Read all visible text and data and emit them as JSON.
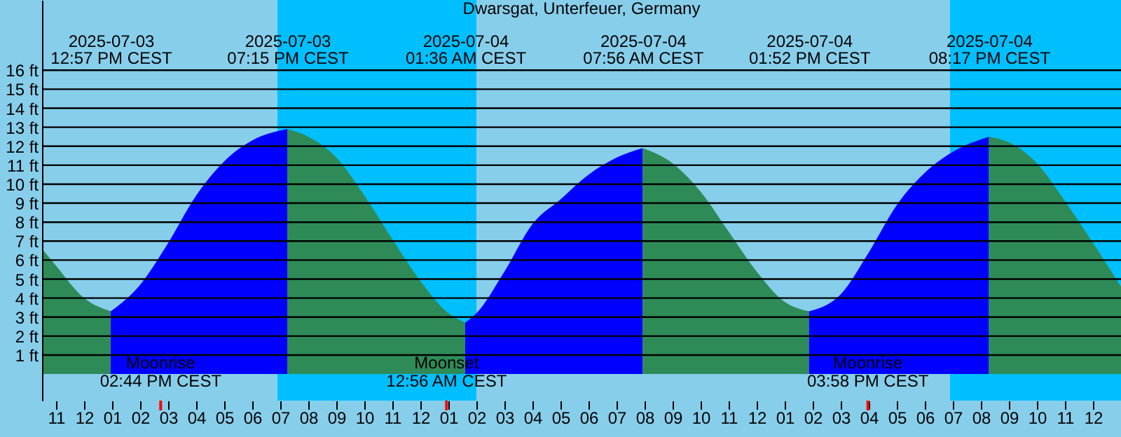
{
  "chart_data": {
    "type": "area",
    "title": "Dwarsgat, Unterfeuer, Germany",
    "series": [
      {
        "color": "#2e8b57",
        "x": [
          "2025-07-03T10:30",
          "2025-07-03T11:00",
          "2025-07-03T12:00",
          "2025-07-03T12:57"
        ],
        "values": [
          6.6,
          5.7,
          4.0,
          3.3
        ]
      },
      {
        "color": "#0000ff",
        "x": [
          "2025-07-03T12:57",
          "2025-07-03T14:00",
          "2025-07-03T15:00",
          "2025-07-03T16:00",
          "2025-07-03T17:00",
          "2025-07-03T18:00",
          "2025-07-03T19:15"
        ],
        "values": [
          3.3,
          4.7,
          6.9,
          9.4,
          11.2,
          12.3,
          12.9
        ]
      },
      {
        "color": "#2e8b57",
        "x": [
          "2025-07-03T19:15",
          "2025-07-03T20:00",
          "2025-07-03T21:00",
          "2025-07-03T22:00",
          "2025-07-03T23:00",
          "2025-07-04T00:00",
          "2025-07-04T01:00",
          "2025-07-04T01:36"
        ],
        "values": [
          12.9,
          12.5,
          11.4,
          9.4,
          7.1,
          4.9,
          3.2,
          2.7
        ]
      },
      {
        "color": "#0000ff",
        "x": [
          "2025-07-04T01:36",
          "2025-07-04T02:00",
          "2025-07-04T03:00",
          "2025-07-04T04:00",
          "2025-07-04T05:00",
          "2025-07-04T06:00",
          "2025-07-04T07:00",
          "2025-07-04T07:56"
        ],
        "values": [
          2.7,
          3.2,
          5.4,
          7.9,
          9.2,
          10.5,
          11.4,
          11.9
        ]
      },
      {
        "color": "#2e8b57",
        "x": [
          "2025-07-04T07:56",
          "2025-07-04T09:00",
          "2025-07-04T10:00",
          "2025-07-04T11:00",
          "2025-07-04T12:00",
          "2025-07-04T13:00",
          "2025-07-04T13:52"
        ],
        "values": [
          11.9,
          11.1,
          9.6,
          7.5,
          5.4,
          3.8,
          3.3
        ]
      },
      {
        "color": "#0000ff",
        "x": [
          "2025-07-04T13:52",
          "2025-07-04T15:00",
          "2025-07-04T16:00",
          "2025-07-04T17:00",
          "2025-07-04T18:00",
          "2025-07-04T19:00",
          "2025-07-04T20:17"
        ],
        "values": [
          3.3,
          4.2,
          6.4,
          8.9,
          10.6,
          11.7,
          12.5
        ]
      },
      {
        "color": "#2e8b57",
        "x": [
          "2025-07-04T20:17",
          "2025-07-04T21:00",
          "2025-07-04T22:00",
          "2025-07-04T23:00",
          "2025-07-05T00:00",
          "2025-07-05T01:00"
        ],
        "values": [
          12.5,
          12.2,
          11.1,
          9.1,
          6.9,
          4.6
        ]
      }
    ],
    "x2lim": [
      "2025-07-03T10:30",
      "2025-07-05T01:00"
    ],
    "x2ticks": [
      {
        "value": "2025-07-03T12:57",
        "label": "2025-07-03\n12:57 PM CEST"
      },
      {
        "value": "2025-07-03T19:15",
        "label": "2025-07-03\n07:15 PM CEST"
      },
      {
        "value": "2025-07-04T01:36",
        "label": "2025-07-04\n01:36 AM CEST"
      },
      {
        "value": "2025-07-04T07:56",
        "label": "2025-07-04\n07:56 AM CEST"
      },
      {
        "value": "2025-07-04T13:52",
        "label": "2025-07-04\n01:52 PM CEST"
      },
      {
        "value": "2025-07-04T20:17",
        "label": "2025-07-04\n08:17 PM CEST"
      }
    ],
    "xlim": [
      "2025-07-03T10:30",
      "2025-07-05T01:00"
    ],
    "ylim": [
      -1.4,
      19.7
    ],
    "xticks": [
      {
        "value": "2025-07-03T11:00",
        "label": "11"
      },
      {
        "value": "2025-07-03T12:00",
        "label": "12"
      },
      {
        "value": "2025-07-03T13:00",
        "label": "01"
      },
      {
        "value": "2025-07-03T14:00",
        "label": "02"
      },
      {
        "value": "2025-07-03T15:00",
        "label": "03"
      },
      {
        "value": "2025-07-03T16:00",
        "label": "04"
      },
      {
        "value": "2025-07-03T17:00",
        "label": "05"
      },
      {
        "value": "2025-07-03T18:00",
        "label": "06"
      },
      {
        "value": "2025-07-03T19:00",
        "label": "07"
      },
      {
        "value": "2025-07-03T20:00",
        "label": "08"
      },
      {
        "value": "2025-07-03T21:00",
        "label": "09"
      },
      {
        "value": "2025-07-03T22:00",
        "label": "10"
      },
      {
        "value": "2025-07-03T23:00",
        "label": "11"
      },
      {
        "value": "2025-07-04T00:00",
        "label": "12"
      },
      {
        "value": "2025-07-04T01:00",
        "label": "01"
      },
      {
        "value": "2025-07-04T02:00",
        "label": "02"
      },
      {
        "value": "2025-07-04T03:00",
        "label": "03"
      },
      {
        "value": "2025-07-04T04:00",
        "label": "04"
      },
      {
        "value": "2025-07-04T05:00",
        "label": "05"
      },
      {
        "value": "2025-07-04T06:00",
        "label": "06"
      },
      {
        "value": "2025-07-04T07:00",
        "label": "07"
      },
      {
        "value": "2025-07-04T08:00",
        "label": "08"
      },
      {
        "value": "2025-07-04T09:00",
        "label": "09"
      },
      {
        "value": "2025-07-04T10:00",
        "label": "10"
      },
      {
        "value": "2025-07-04T11:00",
        "label": "11"
      },
      {
        "value": "2025-07-04T12:00",
        "label": "12"
      },
      {
        "value": "2025-07-04T13:00",
        "label": "01"
      },
      {
        "value": "2025-07-04T14:00",
        "label": "02"
      },
      {
        "value": "2025-07-04T15:00",
        "label": "03"
      },
      {
        "value": "2025-07-04T16:00",
        "label": "04"
      },
      {
        "value": "2025-07-04T17:00",
        "label": "05"
      },
      {
        "value": "2025-07-04T18:00",
        "label": "06"
      },
      {
        "value": "2025-07-04T19:00",
        "label": "07"
      },
      {
        "value": "2025-07-04T20:00",
        "label": "08"
      },
      {
        "value": "2025-07-04T21:00",
        "label": "09"
      },
      {
        "value": "2025-07-04T22:00",
        "label": "10"
      },
      {
        "value": "2025-07-04T23:00",
        "label": "11"
      },
      {
        "value": "2025-07-05T00:00",
        "label": "12"
      }
    ],
    "yticks": [
      {
        "value": 1,
        "label": "1 ft"
      },
      {
        "value": 2,
        "label": "2 ft"
      },
      {
        "value": 3,
        "label": "3 ft"
      },
      {
        "value": 4,
        "label": "4 ft"
      },
      {
        "value": 5,
        "label": "5 ft"
      },
      {
        "value": 6,
        "label": "6 ft"
      },
      {
        "value": 7,
        "label": "7 ft"
      },
      {
        "value": 8,
        "label": "8 ft"
      },
      {
        "value": 9,
        "label": "9 ft"
      },
      {
        "value": 10,
        "label": "10 ft"
      },
      {
        "value": 11,
        "label": "11 ft"
      },
      {
        "value": 12,
        "label": "12 ft"
      },
      {
        "value": 13,
        "label": "13 ft"
      },
      {
        "value": 14,
        "label": "14 ft"
      },
      {
        "value": 15,
        "label": "15 ft"
      },
      {
        "value": 16,
        "label": "16 ft"
      }
    ],
    "grid": "y",
    "bands": [
      {
        "axis": "x",
        "from": "2025-07-03T18:54",
        "to": "2025-07-04T02:00",
        "color": "#00bfff"
      },
      {
        "axis": "x",
        "from": "2025-07-04T18:54",
        "to": "2025-07-05T01:00",
        "color": "#00bfff"
      }
    ],
    "ref_lines": [
      {
        "axis": "x",
        "value": "2025-07-03T14:44",
        "label": "Moonrise\n02:44 PM CEST",
        "color": "#ff0000"
      },
      {
        "axis": "x",
        "value": "2025-07-04T00:56",
        "label": "Moonset\n12:56 AM CEST",
        "color": "#ff0000"
      },
      {
        "axis": "x",
        "value": "2025-07-04T15:58",
        "label": "Moonrise\n03:58 PM CEST",
        "color": "#ff0000"
      }
    ]
  }
}
